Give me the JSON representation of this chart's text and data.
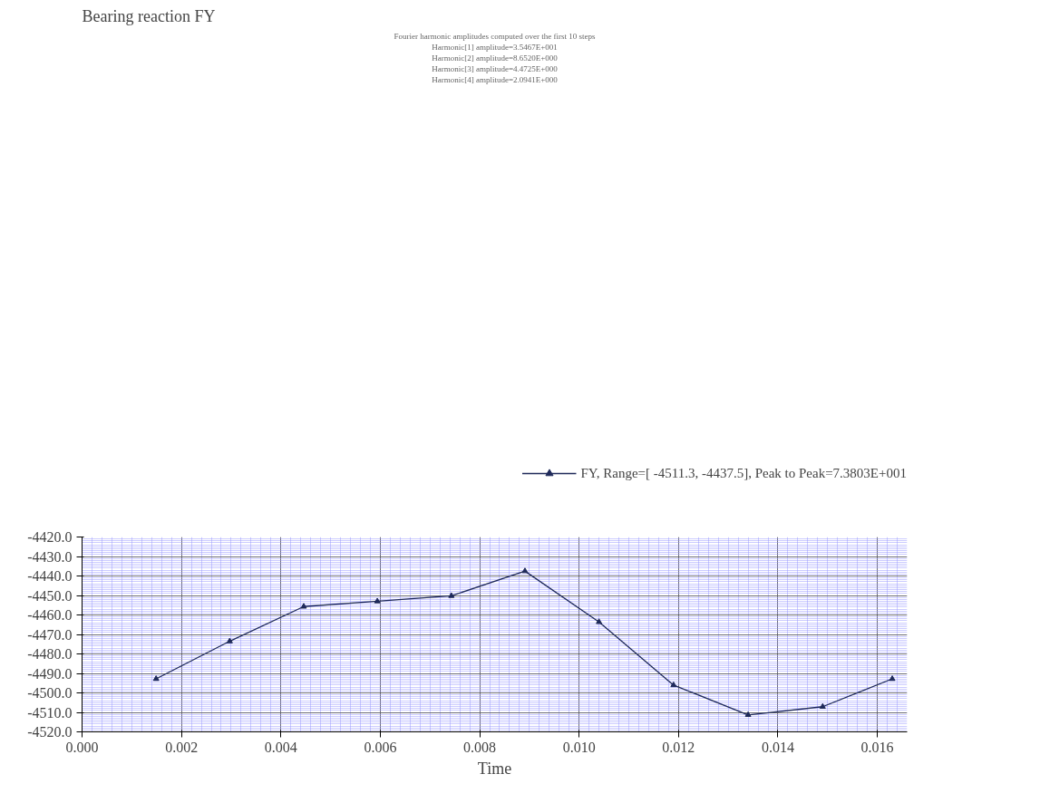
{
  "chart_data": {
    "type": "line",
    "title": "Bearing reaction FY",
    "xlabel": "Time",
    "x": [
      0.00149,
      0.00297,
      0.00446,
      0.00594,
      0.00743,
      0.00891,
      0.0104,
      0.0119,
      0.0134,
      0.0149,
      0.0163
    ],
    "series": [
      {
        "name": "FY, Range=[ -4511.3, -4437.5], Peak to Peak=7.3803E+001",
        "color": "#1f2a5a",
        "values": [
          -4492.8,
          -4473.5,
          -4455.7,
          -4453.0,
          -4450.2,
          -4437.5,
          -4463.6,
          -4496.0,
          -4511.3,
          -4507.1,
          -4492.8
        ]
      }
    ],
    "xlim": [
      0,
      0.0166
    ],
    "xticks": [
      {
        "value": 0,
        "label": "0.000"
      },
      {
        "value": 0.002,
        "label": "0.002"
      },
      {
        "value": 0.004,
        "label": "0.004"
      },
      {
        "value": 0.006,
        "label": "0.006"
      },
      {
        "value": 0.008,
        "label": "0.008"
      },
      {
        "value": 0.01,
        "label": "0.010"
      },
      {
        "value": 0.012,
        "label": "0.012"
      },
      {
        "value": 0.014,
        "label": "0.014"
      },
      {
        "value": 0.016,
        "label": "0.016"
      }
    ],
    "ylim": [
      -4520,
      -4420
    ],
    "yticks": [
      {
        "value": -4420,
        "label": "-4420.0"
      },
      {
        "value": -4430,
        "label": "-4430.0"
      },
      {
        "value": -4440,
        "label": "-4440.0"
      },
      {
        "value": -4450,
        "label": "-4450.0"
      },
      {
        "value": -4460,
        "label": "-4460.0"
      },
      {
        "value": -4470,
        "label": "-4470.0"
      },
      {
        "value": -4480,
        "label": "-4480.0"
      },
      {
        "value": -4490,
        "label": "-4490.0"
      },
      {
        "value": -4500,
        "label": "-4500.0"
      },
      {
        "value": -4510,
        "label": "-4510.0"
      },
      {
        "value": -4520,
        "label": "-4520.0"
      }
    ],
    "grid": true,
    "legend": "top",
    "marker": "triangle",
    "line_style": "solid",
    "annotations": [
      "Fourier harmonic amplitudes computed over the first 10 steps",
      "Harmonic[1] amplitude=3.5467E+001",
      "Harmonic[2] amplitude=8.6520E+000",
      "Harmonic[3] amplitude=4.4725E+000",
      "Harmonic[4] amplitude=2.0941E+000"
    ]
  }
}
